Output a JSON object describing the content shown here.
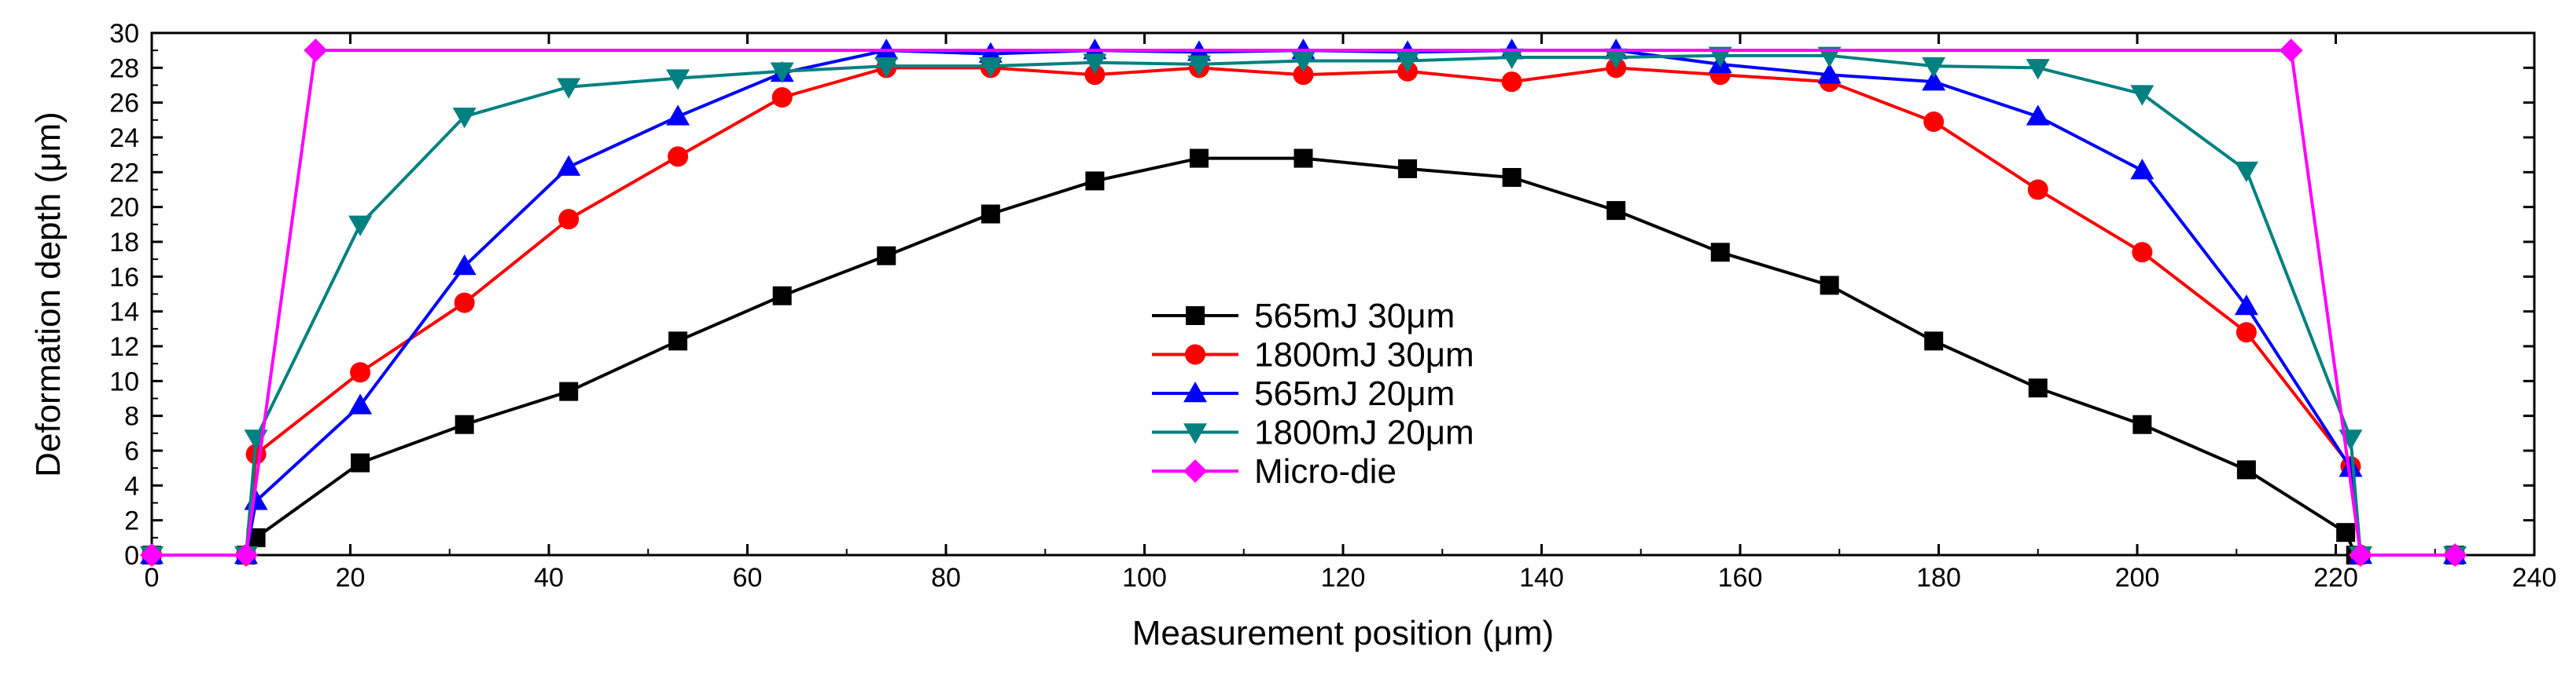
{
  "chart_data": {
    "type": "line",
    "title": "",
    "xlabel": "Measurement position (μm)",
    "ylabel": "Deformation depth (μm)",
    "xlim": [
      0,
      240
    ],
    "ylim": [
      0,
      30
    ],
    "x_ticks": [
      0,
      20,
      40,
      60,
      80,
      100,
      120,
      140,
      160,
      180,
      200,
      220,
      240
    ],
    "y_ticks": [
      0,
      2,
      4,
      6,
      8,
      10,
      12,
      14,
      16,
      18,
      20,
      22,
      24,
      26,
      28,
      30
    ],
    "grid": false,
    "legend_position": "center",
    "series": [
      {
        "name": "565mJ 30μm",
        "color": "#000000",
        "marker": "square",
        "x": [
          0,
          9.5,
          10.5,
          21,
          31.5,
          42,
          53,
          63.5,
          74,
          84.5,
          95,
          105.5,
          116,
          126.5,
          137,
          147.5,
          158,
          169,
          179.5,
          190,
          200.5,
          211,
          221,
          222,
          232
        ],
        "y": [
          0,
          0,
          1,
          5.3,
          7.5,
          9.4,
          12.3,
          14.9,
          17.2,
          19.6,
          21.5,
          22.8,
          22.8,
          22.2,
          21.7,
          19.8,
          17.4,
          15.5,
          12.3,
          9.6,
          7.5,
          4.9,
          1.3,
          0,
          0
        ]
      },
      {
        "name": "1800mJ 30μm",
        "color": "#ff0000",
        "marker": "circle",
        "x": [
          0,
          9.5,
          10.5,
          21,
          31.5,
          42,
          53,
          63.5,
          74,
          84.5,
          95,
          105.5,
          116,
          126.5,
          137,
          147.5,
          158,
          169,
          179.5,
          190,
          200.5,
          211,
          221.5,
          222.5,
          232
        ],
        "y": [
          0,
          0,
          5.8,
          10.5,
          14.5,
          19.3,
          22.9,
          26.3,
          28,
          28,
          27.6,
          28,
          27.6,
          27.8,
          27.2,
          28,
          27.6,
          27.2,
          24.9,
          21,
          17.4,
          12.8,
          5.1,
          0,
          0
        ]
      },
      {
        "name": "565mJ 20μm",
        "color": "#0000ff",
        "marker": "triangle-up",
        "x": [
          0,
          9.5,
          10.5,
          21,
          31.5,
          42,
          53,
          63.5,
          74,
          84.5,
          95,
          105.5,
          116,
          126.5,
          137,
          147.5,
          158,
          169,
          179.5,
          190,
          200.5,
          211,
          221.5,
          222.5,
          232
        ],
        "y": [
          0,
          0,
          3.1,
          8.6,
          16.6,
          22.3,
          25.2,
          27.7,
          29,
          28.8,
          29,
          28.9,
          29,
          28.9,
          29,
          29,
          28.2,
          27.6,
          27.2,
          25.2,
          22.1,
          14.3,
          5,
          0,
          0
        ]
      },
      {
        "name": "1800mJ 20μm",
        "color": "#008080",
        "marker": "triangle-down",
        "x": [
          0,
          9.5,
          10.5,
          21,
          31.5,
          42,
          53,
          63.5,
          74,
          84.5,
          95,
          105.5,
          116,
          126.5,
          137,
          147.5,
          158,
          169,
          179.5,
          190,
          200.5,
          211,
          221.5,
          222.5,
          232
        ],
        "y": [
          0,
          0,
          6.7,
          19,
          25.2,
          26.9,
          27.4,
          27.8,
          28.1,
          28.1,
          28.3,
          28.2,
          28.4,
          28.4,
          28.6,
          28.6,
          28.7,
          28.7,
          28.1,
          28,
          26.5,
          22.1,
          6.7,
          0,
          0
        ]
      },
      {
        "name": "Micro-die",
        "color": "#ff00ff",
        "marker": "diamond",
        "x": [
          0,
          9.5,
          16.5,
          215.5,
          222.5,
          232
        ],
        "y": [
          0,
          0,
          29,
          29,
          0,
          0
        ]
      }
    ]
  }
}
